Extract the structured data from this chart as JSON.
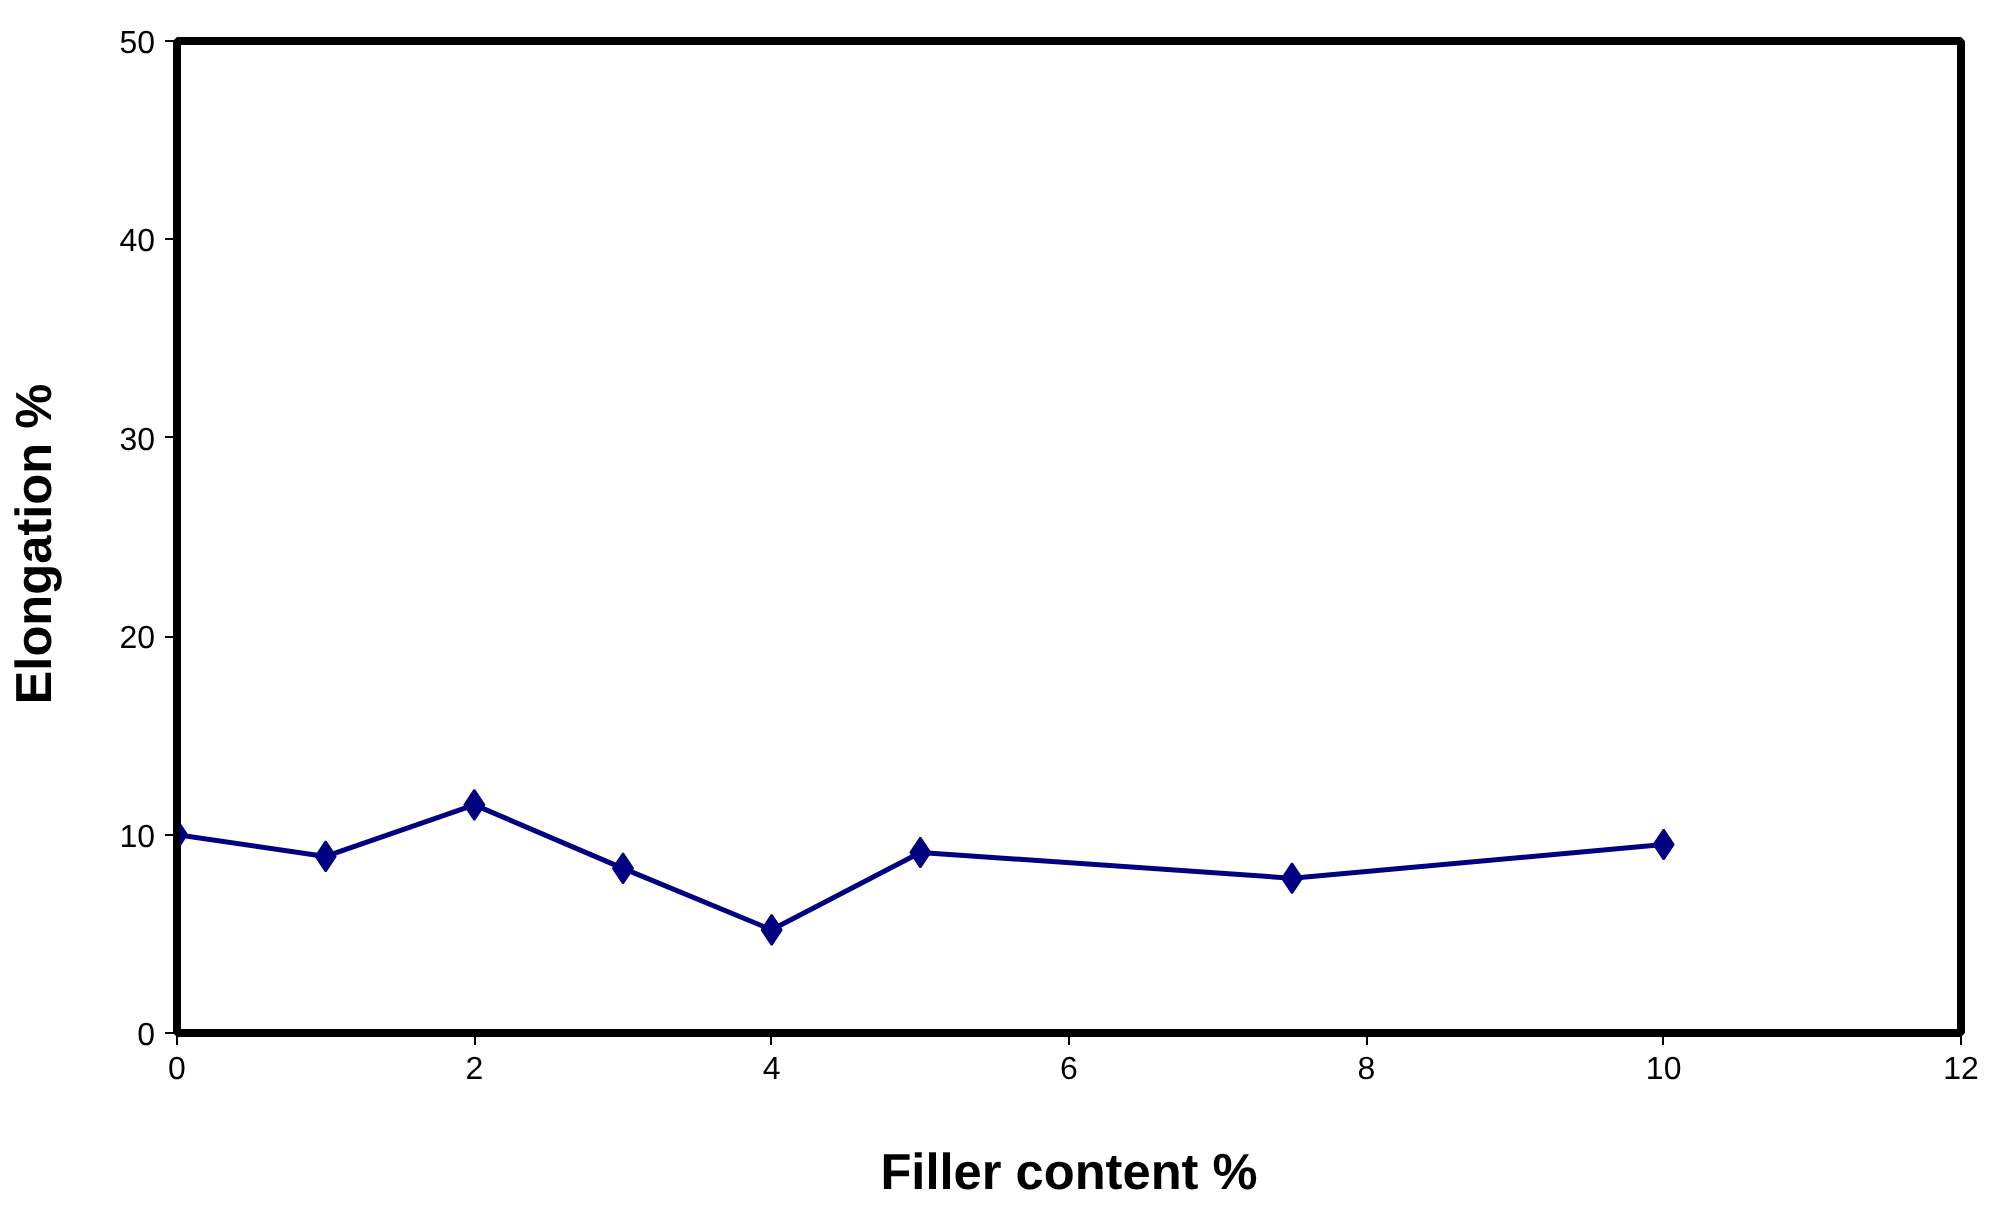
{
  "chart_data": {
    "type": "line",
    "xlabel": "Filler content %",
    "ylabel": "Elongation  %",
    "x": [
      0,
      1,
      2,
      3,
      4,
      5,
      7.5,
      10
    ],
    "series": [
      {
        "color": "#000080",
        "values": [
          10,
          8.9,
          11.5,
          8.3,
          5.2,
          9.1,
          7.8,
          9.5
        ]
      }
    ],
    "xlim": [
      0,
      12
    ],
    "xticks": [
      0,
      2,
      4,
      6,
      8,
      10,
      12
    ],
    "ylim": [
      0,
      50
    ],
    "yticks": [
      0,
      10,
      20,
      30,
      40,
      50
    ],
    "grid": false,
    "marker": "diamond",
    "line_style": "solid"
  }
}
